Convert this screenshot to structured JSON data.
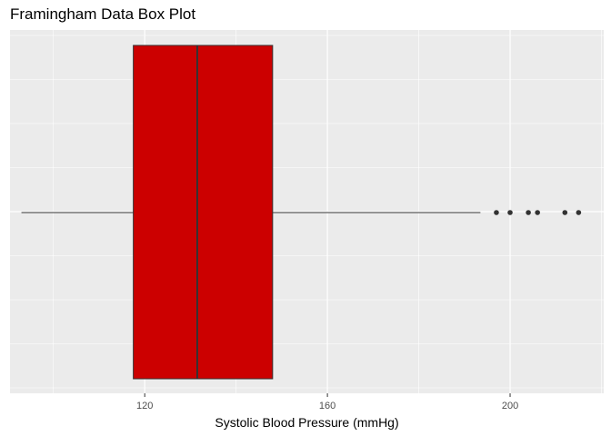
{
  "chart_data": {
    "type": "boxplot",
    "title": "Framingham Data Box Plot",
    "xlabel": "Systolic Blood Pressure (mmHg)",
    "ylabel": "",
    "orientation": "horizontal",
    "xlim": [
      90.5,
      220.5
    ],
    "x_ticks": [
      120,
      160,
      200
    ],
    "major_gridlines": true,
    "minor_gridlines": true,
    "box": {
      "whisker_low": 93,
      "q1": 117.5,
      "median": 131.5,
      "q3": 148,
      "whisker_high": 193.5
    },
    "outliers": [
      197,
      200,
      204,
      206,
      212,
      215
    ],
    "colors": {
      "box_fill": "#cc0000",
      "box_stroke": "#333333",
      "panel_background": "#ebebeb",
      "grid": "#ffffff",
      "point": "#333333"
    }
  }
}
